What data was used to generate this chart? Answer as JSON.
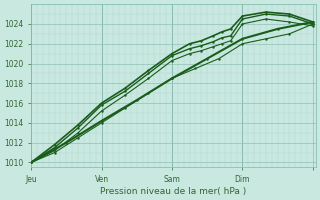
{
  "xlabel": "Pression niveau de la mer( hPa )",
  "bg_color": "#c8e8e0",
  "grid_color_minor": "#b0d8d0",
  "grid_color_major": "#90c0b8",
  "line_color": "#1a5c1a",
  "ylim": [
    1009.5,
    1026.0
  ],
  "xlim": [
    0,
    97
  ],
  "yticks": [
    1010,
    1012,
    1014,
    1016,
    1018,
    1020,
    1022,
    1024
  ],
  "xtick_positions": [
    0,
    24,
    48,
    72,
    96
  ],
  "xtick_labels": [
    "Jeu",
    "Ven",
    "Sam",
    "Dim",
    ""
  ],
  "vline_positions": [
    0,
    24,
    48,
    72
  ],
  "series": [
    {
      "x": [
        0,
        8,
        16,
        24,
        32,
        40,
        48,
        54,
        58,
        62,
        65,
        68,
        72,
        80,
        88,
        96
      ],
      "y": [
        1010.0,
        1011.5,
        1013.5,
        1015.8,
        1017.2,
        1019.0,
        1020.8,
        1021.5,
        1021.8,
        1022.2,
        1022.6,
        1022.8,
        1024.5,
        1025.0,
        1024.8,
        1024.0
      ],
      "lw": 1.0
    },
    {
      "x": [
        0,
        8,
        16,
        24,
        32,
        40,
        48,
        54,
        58,
        62,
        65,
        68,
        72,
        80,
        88,
        96
      ],
      "y": [
        1010.0,
        1011.8,
        1013.8,
        1016.0,
        1017.5,
        1019.3,
        1021.0,
        1022.0,
        1022.3,
        1022.8,
        1023.2,
        1023.5,
        1024.8,
        1025.2,
        1025.0,
        1024.2
      ],
      "lw": 1.2
    },
    {
      "x": [
        0,
        8,
        16,
        24,
        32,
        40,
        48,
        54,
        58,
        62,
        65,
        68,
        72,
        80,
        88,
        96
      ],
      "y": [
        1010.0,
        1011.2,
        1013.0,
        1015.2,
        1016.8,
        1018.5,
        1020.3,
        1021.0,
        1021.3,
        1021.7,
        1022.0,
        1022.3,
        1024.0,
        1024.5,
        1024.2,
        1023.8
      ],
      "lw": 0.8
    },
    {
      "x": [
        0,
        8,
        16,
        24,
        32,
        40,
        48,
        56,
        64,
        72,
        80,
        88,
        96
      ],
      "y": [
        1010.0,
        1011.0,
        1012.5,
        1014.0,
        1015.5,
        1017.0,
        1018.5,
        1019.5,
        1020.5,
        1022.0,
        1022.5,
        1023.0,
        1024.0
      ],
      "lw": 0.8
    },
    {
      "x": [
        0,
        12,
        24,
        36,
        48,
        60,
        72,
        84,
        96
      ],
      "y": [
        1010.0,
        1012.0,
        1014.2,
        1016.3,
        1018.5,
        1020.5,
        1022.5,
        1023.5,
        1024.2
      ],
      "lw": 1.5
    }
  ]
}
